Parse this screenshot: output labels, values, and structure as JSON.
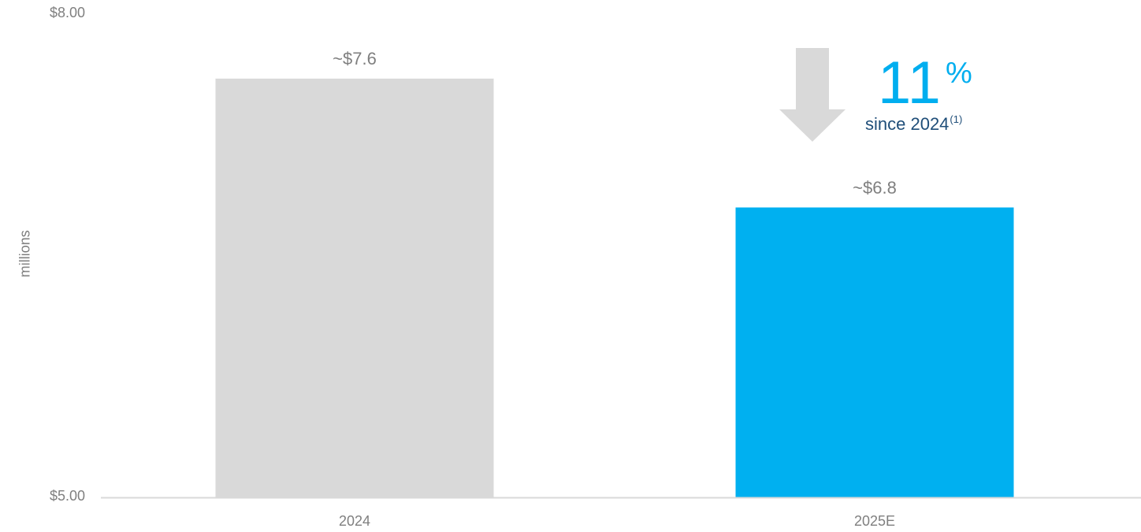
{
  "colors": {
    "bar_2024": "#d9d9d9",
    "bar_2025": "#00b0f0",
    "arrow": "#d9d9d9",
    "axis_text": "#7f7f7f",
    "callout_accent": "#00aeef",
    "callout_note": "#1f4e79",
    "axis_line": "#d9d9d9"
  },
  "callout": {
    "value": "11",
    "unit": "%",
    "note": "since 2024",
    "footnote": "(1)",
    "icon": "down-arrow-icon"
  },
  "chart_data": {
    "type": "bar",
    "categories": [
      "2024",
      "2025E"
    ],
    "values": [
      7.6,
      6.8
    ],
    "data_labels": [
      "~$7.6",
      "~$6.8"
    ],
    "ylabel": "millions",
    "ylim": [
      5,
      8
    ],
    "y_ticks": [
      "$5.00",
      "$8.00"
    ],
    "y_tick_values": [
      5,
      8
    ],
    "grid": false
  }
}
